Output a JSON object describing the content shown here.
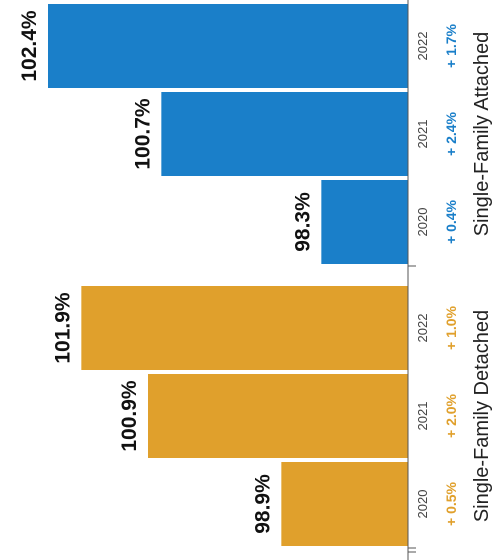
{
  "chart_data": {
    "type": "bar",
    "orientation": "horizontal",
    "categories": [
      "2020",
      "2021",
      "2022"
    ],
    "groups": [
      {
        "name": "Single-Family Detached",
        "color": "#e0a02c",
        "values": [
          98.9,
          100.9,
          101.9
        ],
        "value_labels": [
          "98.9%",
          "100.9%",
          "101.9%"
        ],
        "changes": [
          "+ 0.5%",
          "+ 2.0%",
          "+ 1.0%"
        ]
      },
      {
        "name": "Single-Family Attached",
        "color": "#1a7fc9",
        "values": [
          98.3,
          100.7,
          102.4
        ],
        "value_labels": [
          "98.3%",
          "100.7%",
          "102.4%"
        ],
        "changes": [
          "+ 0.4%",
          "+ 2.4%",
          "+ 1.7%"
        ]
      }
    ],
    "xlim": [
      97.0,
      102.4
    ],
    "grid": false,
    "legend": "none"
  }
}
